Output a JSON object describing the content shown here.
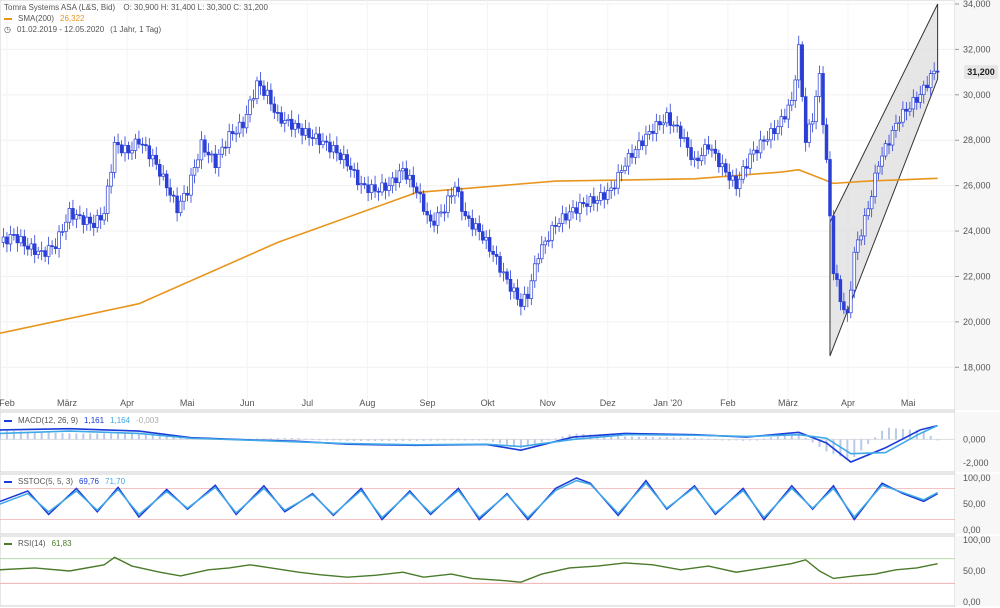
{
  "header": {
    "instrument": "Tomra Systems ASA (L&S, Bid)",
    "ohlc": "O: 30,900   H: 31,400   L: 30,300   C: 31,200",
    "sma_label": "SMA(200)",
    "sma_value": "26,322",
    "range": "01.02.2019 - 12.05.2020",
    "interval": "(1 Jahr, 1 Tag)",
    "last_price": "31,200"
  },
  "macd": {
    "label": "MACD(12, 26, 9)",
    "v1": "1,161",
    "v2": "1,164",
    "v3": "-0,003"
  },
  "stoch": {
    "label": "SSTOC(5, 5, 3)",
    "v1": "69,76",
    "v2": "71,70"
  },
  "rsi": {
    "label": "RSI(14)",
    "v1": "61,83"
  },
  "colors": {
    "candle": "#2a3fd6",
    "sma": "#e8951c",
    "macd": "#1a3bd8",
    "signal": "#3fa8e8",
    "rsi": "#4a7a2a",
    "channel": "#cccccc"
  },
  "chart_data": [
    {
      "type": "candlestick",
      "title": "Tomra Systems ASA (L&S, Bid)",
      "x_ticks": [
        "Feb",
        "März",
        "Apr",
        "Mai",
        "Jun",
        "Jul",
        "Aug",
        "Sep",
        "Okt",
        "Nov",
        "Dez",
        "Jan '20",
        "Feb",
        "März",
        "Apr",
        "Mai"
      ],
      "ylim": [
        17000,
        34000
      ],
      "y_ticks": [
        "18,000",
        "20,000",
        "22,000",
        "24,000",
        "26,000",
        "28,000",
        "30,000",
        "32,000",
        "34,000"
      ],
      "price_path": [
        [
          0,
          23500
        ],
        [
          4,
          23800
        ],
        [
          8,
          23300
        ],
        [
          12,
          23000
        ],
        [
          16,
          23400
        ],
        [
          20,
          24800
        ],
        [
          24,
          24500
        ],
        [
          27,
          24300
        ],
        [
          30,
          24800
        ],
        [
          33,
          27800
        ],
        [
          37,
          27500
        ],
        [
          40,
          28000
        ],
        [
          44,
          27200
        ],
        [
          48,
          26000
        ],
        [
          51,
          25000
        ],
        [
          54,
          25800
        ],
        [
          58,
          27800
        ],
        [
          62,
          27000
        ],
        [
          66,
          28200
        ],
        [
          70,
          28700
        ],
        [
          74,
          30500
        ],
        [
          77,
          30000
        ],
        [
          80,
          29000
        ],
        [
          84,
          28700
        ],
        [
          88,
          28300
        ],
        [
          92,
          28000
        ],
        [
          96,
          27600
        ],
        [
          100,
          27000
        ],
        [
          104,
          26000
        ],
        [
          108,
          25800
        ],
        [
          112,
          26000
        ],
        [
          116,
          26700
        ],
        [
          120,
          25800
        ],
        [
          124,
          24300
        ],
        [
          128,
          25000
        ],
        [
          131,
          26000
        ],
        [
          134,
          24600
        ],
        [
          138,
          24000
        ],
        [
          142,
          23000
        ],
        [
          146,
          21800
        ],
        [
          150,
          20800
        ],
        [
          152,
          21200
        ],
        [
          155,
          23000
        ],
        [
          160,
          24300
        ],
        [
          164,
          24800
        ],
        [
          168,
          25200
        ],
        [
          172,
          25400
        ],
        [
          176,
          25800
        ],
        [
          180,
          27000
        ],
        [
          184,
          27800
        ],
        [
          188,
          28500
        ],
        [
          192,
          29000
        ],
        [
          196,
          28300
        ],
        [
          200,
          27000
        ],
        [
          204,
          27800
        ],
        [
          208,
          26800
        ],
        [
          212,
          26000
        ],
        [
          216,
          27300
        ],
        [
          220,
          28000
        ],
        [
          224,
          28600
        ],
        [
          228,
          29700
        ],
        [
          230,
          32000
        ],
        [
          232,
          28000
        ],
        [
          234,
          29000
        ],
        [
          236,
          30800
        ],
        [
          238,
          27000
        ],
        [
          240,
          22300
        ],
        [
          242,
          21000
        ],
        [
          244,
          20200
        ],
        [
          246,
          23000
        ],
        [
          248,
          24000
        ],
        [
          250,
          25000
        ],
        [
          253,
          27000
        ],
        [
          256,
          28000
        ],
        [
          259,
          29000
        ],
        [
          262,
          29500
        ],
        [
          265,
          30000
        ],
        [
          268,
          30800
        ],
        [
          270,
          31200
        ]
      ],
      "sma200_path": [
        [
          0,
          19500
        ],
        [
          40,
          20800
        ],
        [
          80,
          23500
        ],
        [
          120,
          25700
        ],
        [
          160,
          26200
        ],
        [
          200,
          26300
        ],
        [
          225,
          26600
        ],
        [
          230,
          26700
        ],
        [
          240,
          26100
        ],
        [
          250,
          26200
        ],
        [
          270,
          26322
        ]
      ],
      "channel": {
        "lower": [
          [
            239,
            18500
          ],
          [
            270,
            30700
          ]
        ],
        "upper": [
          [
            239,
            24400
          ],
          [
            270,
            34000
          ]
        ]
      },
      "last_close": 31200,
      "sma200_last": 26322
    },
    {
      "type": "line",
      "title": "MACD(12, 26, 9)",
      "ylim": [
        -2400,
        1800
      ],
      "y_ticks": [
        "0,000",
        "-2,000"
      ],
      "series": [
        {
          "name": "MACD",
          "path": [
            [
              0,
              800
            ],
            [
              20,
              900
            ],
            [
              40,
              700
            ],
            [
              55,
              150
            ],
            [
              70,
              -20
            ],
            [
              85,
              -150
            ],
            [
              100,
              -400
            ],
            [
              120,
              -500
            ],
            [
              140,
              -420
            ],
            [
              150,
              -900
            ],
            [
              165,
              200
            ],
            [
              180,
              500
            ],
            [
              200,
              400
            ],
            [
              215,
              200
            ],
            [
              230,
              600
            ],
            [
              238,
              -300
            ],
            [
              245,
              -1900
            ],
            [
              255,
              -700
            ],
            [
              265,
              800
            ],
            [
              270,
              1161
            ]
          ]
        },
        {
          "name": "Signal",
          "path": [
            [
              0,
              500
            ],
            [
              20,
              700
            ],
            [
              40,
              500
            ],
            [
              55,
              100
            ],
            [
              70,
              -40
            ],
            [
              85,
              -200
            ],
            [
              100,
              -350
            ],
            [
              120,
              -450
            ],
            [
              140,
              -400
            ],
            [
              150,
              -600
            ],
            [
              165,
              0
            ],
            [
              180,
              400
            ],
            [
              200,
              350
            ],
            [
              215,
              250
            ],
            [
              230,
              400
            ],
            [
              238,
              100
            ],
            [
              245,
              -1200
            ],
            [
              255,
              -1100
            ],
            [
              265,
              500
            ],
            [
              270,
              1164
            ]
          ]
        }
      ]
    },
    {
      "type": "line",
      "title": "SSTOC(5, 5, 3)",
      "ylim": [
        0,
        100
      ],
      "y_ticks": [
        "100,00",
        "50,00",
        "0,00"
      ],
      "series": [
        {
          "name": "%K",
          "path": [
            [
              0,
              55
            ],
            [
              8,
              75
            ],
            [
              14,
              30
            ],
            [
              22,
              80
            ],
            [
              28,
              35
            ],
            [
              34,
              82
            ],
            [
              40,
              25
            ],
            [
              48,
              78
            ],
            [
              54,
              40
            ],
            [
              62,
              86
            ],
            [
              68,
              30
            ],
            [
              76,
              85
            ],
            [
              82,
              35
            ],
            [
              90,
              70
            ],
            [
              96,
              28
            ],
            [
              104,
              80
            ],
            [
              110,
              20
            ],
            [
              118,
              75
            ],
            [
              124,
              30
            ],
            [
              132,
              80
            ],
            [
              138,
              20
            ],
            [
              146,
              70
            ],
            [
              152,
              20
            ],
            [
              160,
              80
            ],
            [
              166,
              100
            ],
            [
              170,
              90
            ],
            [
              178,
              28
            ],
            [
              186,
              95
            ],
            [
              192,
              40
            ],
            [
              200,
              85
            ],
            [
              206,
              30
            ],
            [
              214,
              80
            ],
            [
              220,
              20
            ],
            [
              228,
              85
            ],
            [
              234,
              40
            ],
            [
              240,
              85
            ],
            [
              246,
              20
            ],
            [
              254,
              90
            ],
            [
              260,
              70
            ],
            [
              266,
              55
            ],
            [
              270,
              70
            ]
          ]
        },
        {
          "name": "%D",
          "path": [
            [
              0,
              50
            ],
            [
              8,
              70
            ],
            [
              14,
              35
            ],
            [
              22,
              75
            ],
            [
              28,
              38
            ],
            [
              34,
              78
            ],
            [
              40,
              30
            ],
            [
              48,
              74
            ],
            [
              54,
              42
            ],
            [
              62,
              82
            ],
            [
              68,
              33
            ],
            [
              76,
              80
            ],
            [
              82,
              38
            ],
            [
              90,
              68
            ],
            [
              96,
              30
            ],
            [
              104,
              76
            ],
            [
              110,
              24
            ],
            [
              118,
              72
            ],
            [
              124,
              33
            ],
            [
              132,
              76
            ],
            [
              138,
              24
            ],
            [
              146,
              68
            ],
            [
              152,
              24
            ],
            [
              160,
              76
            ],
            [
              166,
              95
            ],
            [
              170,
              88
            ],
            [
              178,
              32
            ],
            [
              186,
              90
            ],
            [
              192,
              42
            ],
            [
              200,
              82
            ],
            [
              206,
              33
            ],
            [
              214,
              76
            ],
            [
              220,
              24
            ],
            [
              228,
              80
            ],
            [
              234,
              42
            ],
            [
              240,
              80
            ],
            [
              246,
              25
            ],
            [
              254,
              86
            ],
            [
              260,
              72
            ],
            [
              266,
              58
            ],
            [
              270,
              72
            ]
          ]
        }
      ]
    },
    {
      "type": "line",
      "title": "RSI(14)",
      "ylim": [
        0,
        100
      ],
      "y_ticks": [
        "100,00",
        "50,00",
        "0,00"
      ],
      "series": [
        {
          "name": "RSI",
          "path": [
            [
              0,
              52
            ],
            [
              10,
              55
            ],
            [
              20,
              50
            ],
            [
              30,
              60
            ],
            [
              33,
              72
            ],
            [
              38,
              58
            ],
            [
              46,
              48
            ],
            [
              52,
              42
            ],
            [
              60,
              52
            ],
            [
              66,
              55
            ],
            [
              72,
              60
            ],
            [
              78,
              55
            ],
            [
              86,
              48
            ],
            [
              92,
              44
            ],
            [
              100,
              40
            ],
            [
              108,
              43
            ],
            [
              116,
              48
            ],
            [
              122,
              40
            ],
            [
              130,
              45
            ],
            [
              136,
              38
            ],
            [
              144,
              35
            ],
            [
              150,
              32
            ],
            [
              156,
              45
            ],
            [
              164,
              55
            ],
            [
              172,
              58
            ],
            [
              180,
              63
            ],
            [
              188,
              60
            ],
            [
              196,
              52
            ],
            [
              204,
              58
            ],
            [
              212,
              48
            ],
            [
              220,
              55
            ],
            [
              228,
              62
            ],
            [
              232,
              68
            ],
            [
              236,
              50
            ],
            [
              240,
              38
            ],
            [
              246,
              42
            ],
            [
              252,
              45
            ],
            [
              258,
              52
            ],
            [
              264,
              55
            ],
            [
              270,
              61.83
            ]
          ]
        }
      ]
    }
  ]
}
